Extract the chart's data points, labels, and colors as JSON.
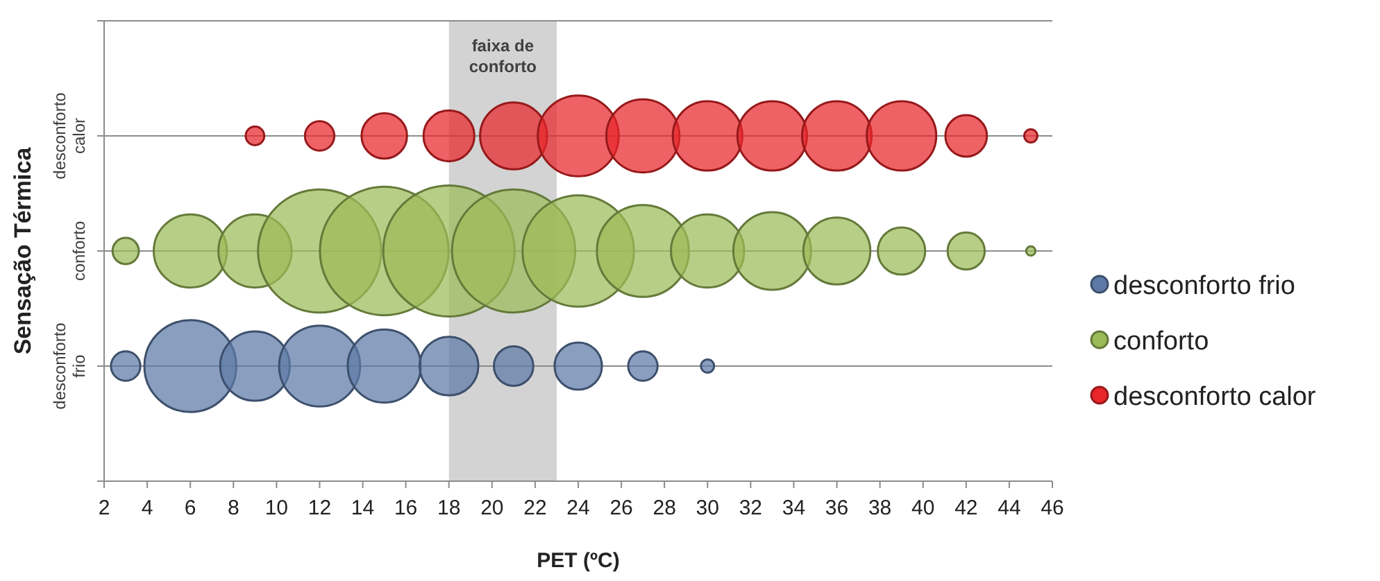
{
  "chart_data": {
    "type": "bubble",
    "orientation": "horizontal",
    "xlabel": "PET (ºC)",
    "ylabel": "Sensação Térmica",
    "xlim": [
      2,
      46
    ],
    "xticks": [
      2,
      4,
      6,
      8,
      10,
      12,
      14,
      16,
      18,
      20,
      22,
      24,
      26,
      28,
      30,
      32,
      34,
      36,
      38,
      40,
      42,
      44,
      46
    ],
    "categories": [
      "desconforto calor",
      "conforto",
      "desconforto frio"
    ],
    "grid": "y",
    "legend": "right",
    "bands": [
      {
        "axis": "x",
        "from": 18,
        "to": 23,
        "label": "faixa de conforto",
        "color": "#d3d3d3"
      }
    ],
    "series": [
      {
        "name": "desconforto frio",
        "color": "#5d7aa6",
        "x": [
          "desconforto frio",
          "desconforto frio",
          "desconforto frio",
          "desconforto frio",
          "desconforto frio",
          "desconforto frio",
          "desconforto frio",
          "desconforto frio",
          "desconforto frio",
          "desconforto frio"
        ],
        "values": [
          3,
          6,
          9,
          12,
          15,
          18,
          21,
          24,
          27,
          30
        ],
        "sizes": [
          0.05,
          0.49,
          0.28,
          0.38,
          0.31,
          0.2,
          0.09,
          0.13,
          0.05,
          0.01
        ]
      },
      {
        "name": "conforto",
        "color": "#9bbb59",
        "x": [
          "conforto",
          "conforto",
          "conforto",
          "conforto",
          "conforto",
          "conforto",
          "conforto",
          "conforto",
          "conforto",
          "conforto",
          "conforto",
          "conforto",
          "conforto",
          "conforto",
          "conforto"
        ],
        "values": [
          3,
          6,
          9,
          12,
          15,
          18,
          21,
          24,
          27,
          30,
          33,
          36,
          39,
          42,
          45
        ],
        "sizes": [
          0.04,
          0.31,
          0.31,
          0.88,
          0.96,
          1,
          0.88,
          0.72,
          0.49,
          0.31,
          0.35,
          0.26,
          0.13,
          0.08,
          0.005
        ]
      },
      {
        "name": "desconforto calor",
        "color": "#e8262a",
        "x": [
          "desconforto calor",
          "desconforto calor",
          "desconforto calor",
          "desconforto calor",
          "desconforto calor",
          "desconforto calor",
          "desconforto calor",
          "desconforto calor",
          "desconforto calor",
          "desconforto calor",
          "desconforto calor",
          "desconforto calor",
          "desconforto calor"
        ],
        "values": [
          9,
          12,
          15,
          18,
          21,
          24,
          27,
          30,
          33,
          36,
          39,
          42,
          45
        ],
        "sizes": [
          0.02,
          0.05,
          0.12,
          0.15,
          0.26,
          0.38,
          0.31,
          0.28,
          0.28,
          0.28,
          0.28,
          0.1,
          0.01
        ]
      }
    ]
  }
}
